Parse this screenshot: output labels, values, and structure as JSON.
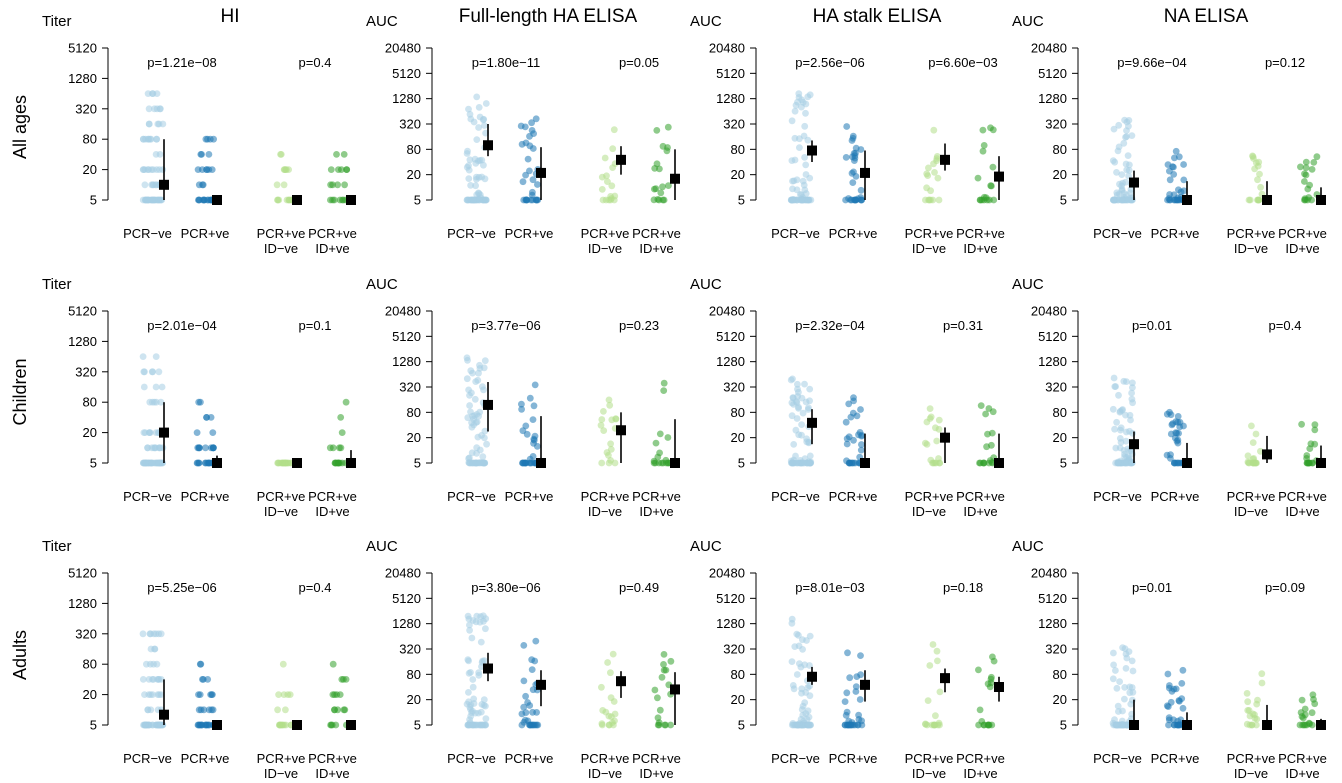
{
  "colors": {
    "pcr_neg": "#a6cee3",
    "pcr_pos": "#1f78b4",
    "id_neg": "#b2df8a",
    "id_pos": "#33a02c",
    "summary": "#000000"
  },
  "chart_data": {
    "type": "scatter",
    "column_titles": [
      "HI",
      "Full-length HA ELISA",
      "HA stalk ELISA",
      "NA ELISA"
    ],
    "row_labels": [
      "All ages",
      "Children",
      "Adults"
    ],
    "group_labels": [
      {
        "line1": "PCR−ve",
        "line2": ""
      },
      {
        "line1": "PCR+ve",
        "line2": ""
      },
      {
        "line1": "PCR+ve",
        "line2": "ID−ve"
      },
      {
        "line1": "PCR+ve",
        "line2": "ID+ve"
      }
    ],
    "panels": [
      {
        "row": 0,
        "col": 0,
        "ylabel": "Titer",
        "yscale": "log2",
        "yticks": [
          "5",
          "20",
          "80",
          "320",
          "1280",
          "5120"
        ],
        "ylim": [
          5,
          5120
        ],
        "pvalues": [
          "p=1.21e−08",
          "p=0.4"
        ],
        "summary": [
          {
            "point": 10,
            "low": 5,
            "high": 80
          },
          {
            "point": 5
          },
          {
            "point": 5
          },
          {
            "point": 5
          }
        ],
        "spread": [
          640,
          80,
          80,
          80
        ]
      },
      {
        "row": 0,
        "col": 1,
        "ylabel": "AUC",
        "yscale": "log2",
        "yticks": [
          "5",
          "20",
          "80",
          "320",
          "1280",
          "5120",
          "20480"
        ],
        "ylim": [
          5,
          20480
        ],
        "pvalues": [
          "p=1.80e−11",
          "p=0.05"
        ],
        "summary": [
          {
            "point": 100,
            "low": 55,
            "high": 320
          },
          {
            "point": 22,
            "low": 5,
            "high": 90
          },
          {
            "point": 45,
            "low": 20,
            "high": 95
          },
          {
            "point": 16,
            "low": 5,
            "high": 80
          }
        ],
        "spread": [
          1900,
          450,
          280,
          450
        ]
      },
      {
        "row": 0,
        "col": 2,
        "ylabel": "AUC",
        "yscale": "log2",
        "yticks": [
          "5",
          "20",
          "80",
          "320",
          "1280",
          "5120",
          "20480"
        ],
        "ylim": [
          5,
          20480
        ],
        "pvalues": [
          "p=2.56e−06",
          "p=6.60e−03"
        ],
        "summary": [
          {
            "point": 75,
            "low": 40,
            "high": 130
          },
          {
            "point": 22,
            "low": 5,
            "high": 75
          },
          {
            "point": 45,
            "low": 25,
            "high": 110
          },
          {
            "point": 18,
            "low": 5,
            "high": 55
          }
        ],
        "spread": [
          2000,
          400,
          400,
          320
        ]
      },
      {
        "row": 0,
        "col": 3,
        "ylabel": "AUC",
        "yscale": "log2",
        "yticks": [
          "5",
          "20",
          "80",
          "320",
          "1280",
          "5120",
          "20480"
        ],
        "ylim": [
          5,
          20480
        ],
        "pvalues": [
          "p=9.66e−04",
          "p=0.12"
        ],
        "summary": [
          {
            "point": 13,
            "low": 5,
            "high": 25
          },
          {
            "point": 5,
            "low": 5,
            "high": 14
          },
          {
            "point": 5,
            "low": 5,
            "high": 14
          },
          {
            "point": 5,
            "low": 5,
            "high": 10
          }
        ],
        "spread": [
          500,
          95,
          95,
          75
        ]
      },
      {
        "row": 1,
        "col": 0,
        "ylabel": "Titer",
        "yscale": "log2",
        "yticks": [
          "5",
          "20",
          "80",
          "320",
          "1280",
          "5120"
        ],
        "ylim": [
          5,
          5120
        ],
        "pvalues": [
          "p=2.01e−04",
          "p=0.1"
        ],
        "summary": [
          {
            "point": 20,
            "low": 5,
            "high": 80
          },
          {
            "point": 5,
            "low": 5,
            "high": 7
          },
          {
            "point": 5
          },
          {
            "point": 5,
            "low": 5,
            "high": 9
          }
        ],
        "spread": [
          640,
          80,
          5,
          80
        ]
      },
      {
        "row": 1,
        "col": 1,
        "ylabel": "AUC",
        "yscale": "log2",
        "yticks": [
          "5",
          "20",
          "80",
          "320",
          "1280",
          "5120",
          "20480"
        ],
        "ylim": [
          5,
          20480
        ],
        "pvalues": [
          "p=3.77e−06",
          "p=0.23"
        ],
        "summary": [
          {
            "point": 120,
            "low": 28,
            "high": 420
          },
          {
            "point": 5,
            "low": 5,
            "high": 65
          },
          {
            "point": 30,
            "low": 5,
            "high": 80
          },
          {
            "point": 5,
            "low": 5,
            "high": 55
          }
        ],
        "spread": [
          2200,
          400,
          160,
          450
        ]
      },
      {
        "row": 1,
        "col": 2,
        "ylabel": "AUC",
        "yscale": "log2",
        "yticks": [
          "5",
          "20",
          "80",
          "320",
          "1280",
          "5120",
          "20480"
        ],
        "ylim": [
          5,
          20480
        ],
        "pvalues": [
          "p=2.32e−04",
          "p=0.31"
        ],
        "summary": [
          {
            "point": 45,
            "low": 14,
            "high": 95
          },
          {
            "point": 5,
            "low": 5,
            "high": 25
          },
          {
            "point": 20,
            "low": 5,
            "high": 35
          },
          {
            "point": 5,
            "low": 5,
            "high": 25
          }
        ],
        "spread": [
          500,
          200,
          100,
          150
        ]
      },
      {
        "row": 1,
        "col": 3,
        "ylabel": "AUC",
        "yscale": "log2",
        "yticks": [
          "5",
          "20",
          "80",
          "320",
          "1280",
          "5120",
          "20480"
        ],
        "ylim": [
          5,
          20480
        ],
        "pvalues": [
          "p=0.01",
          "p=0.4"
        ],
        "summary": [
          {
            "point": 14,
            "low": 5,
            "high": 28
          },
          {
            "point": 5,
            "low": 5,
            "high": 15
          },
          {
            "point": 8,
            "low": 5,
            "high": 22
          },
          {
            "point": 5,
            "low": 5,
            "high": 13
          }
        ],
        "spread": [
          550,
          80,
          45,
          80
        ]
      },
      {
        "row": 2,
        "col": 0,
        "ylabel": "Titer",
        "yscale": "log2",
        "yticks": [
          "5",
          "20",
          "80",
          "320",
          "1280",
          "5120"
        ],
        "ylim": [
          5,
          5120
        ],
        "pvalues": [
          "p=5.25e−06",
          "p=0.4"
        ],
        "summary": [
          {
            "point": 8,
            "low": 5,
            "high": 40
          },
          {
            "point": 5
          },
          {
            "point": 5
          },
          {
            "point": 5
          }
        ],
        "spread": [
          640,
          80,
          80,
          80
        ]
      },
      {
        "row": 2,
        "col": 1,
        "ylabel": "AUC",
        "yscale": "log2",
        "yticks": [
          "5",
          "20",
          "80",
          "320",
          "1280",
          "5120",
          "20480"
        ],
        "ylim": [
          5,
          20480
        ],
        "pvalues": [
          "p=3.80e−06",
          "p=0.49"
        ],
        "summary": [
          {
            "point": 110,
            "low": 55,
            "high": 260
          },
          {
            "point": 45,
            "low": 14,
            "high": 100
          },
          {
            "point": 55,
            "low": 22,
            "high": 95
          },
          {
            "point": 35,
            "low": 5,
            "high": 90
          }
        ],
        "spread": [
          2000,
          500,
          250,
          500
        ]
      },
      {
        "row": 2,
        "col": 2,
        "ylabel": "AUC",
        "yscale": "log2",
        "yticks": [
          "5",
          "20",
          "80",
          "320",
          "1280",
          "5120",
          "20480"
        ],
        "ylim": [
          5,
          20480
        ],
        "pvalues": [
          "p=8.01e−03",
          "p=0.18"
        ],
        "summary": [
          {
            "point": 70,
            "low": 45,
            "high": 120
          },
          {
            "point": 45,
            "low": 18,
            "high": 100
          },
          {
            "point": 65,
            "low": 30,
            "high": 110
          },
          {
            "point": 40,
            "low": 18,
            "high": 70
          }
        ],
        "spread": [
          2500,
          450,
          450,
          350
        ]
      },
      {
        "row": 2,
        "col": 3,
        "ylabel": "AUC",
        "yscale": "log2",
        "yticks": [
          "5",
          "20",
          "80",
          "320",
          "1280",
          "5120",
          "20480"
        ],
        "ylim": [
          5,
          20480
        ],
        "pvalues": [
          "p=0.01",
          "p=0.09"
        ],
        "summary": [
          {
            "point": 5,
            "low": 5,
            "high": 20
          },
          {
            "point": 5,
            "low": 5,
            "high": 10
          },
          {
            "point": 5,
            "low": 5,
            "high": 15
          },
          {
            "point": 5,
            "low": 5,
            "high": 7
          }
        ],
        "spread": [
          450,
          100,
          100,
          30
        ]
      }
    ]
  }
}
